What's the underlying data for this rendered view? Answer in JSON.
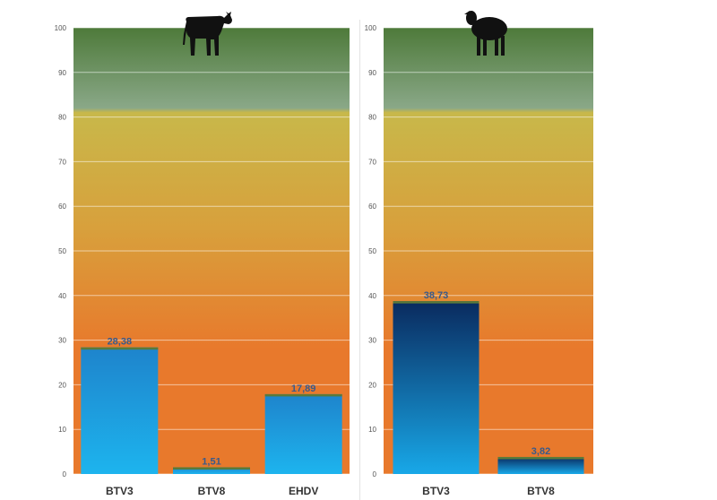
{
  "chart_data": [
    {
      "type": "bar",
      "icon": "cow-icon",
      "categories": [
        "BTV3",
        "BTV8",
        "EHDV"
      ],
      "values": [
        28.38,
        1.51,
        17.89
      ],
      "value_labels": [
        "28,38",
        "1,51",
        "17,89"
      ],
      "ylim": [
        0,
        100
      ],
      "yticks": [
        0,
        10,
        20,
        30,
        40,
        50,
        60,
        70,
        80,
        90,
        100
      ],
      "grid": true,
      "bar_style": "light-blue-gradient",
      "title": "",
      "xlabel": "",
      "ylabel": ""
    },
    {
      "type": "bar",
      "icon": "sheep-icon",
      "categories": [
        "BTV3",
        "BTV8"
      ],
      "values": [
        38.73,
        3.82
      ],
      "value_labels": [
        "38,73",
        "3,82"
      ],
      "ylim": [
        0,
        100
      ],
      "yticks": [
        0,
        10,
        20,
        30,
        40,
        50,
        60,
        70,
        80,
        90,
        100
      ],
      "grid": true,
      "bar_style": "dark-blue-gradient",
      "title": "",
      "xlabel": "",
      "ylabel": ""
    }
  ],
  "colors": {
    "zone_green": "#4e7a3a",
    "zone_yellow": "#c8b84a",
    "zone_orange": "#e8792c",
    "bar_light_top": "#1e84cc",
    "bar_light_bottom": "#1db4ee",
    "bar_dark_top": "#0a2a5e",
    "bar_dark_bottom": "#18a8e8",
    "bar_cap": "#5a7a3a",
    "value_label": "#3a5a8a"
  }
}
